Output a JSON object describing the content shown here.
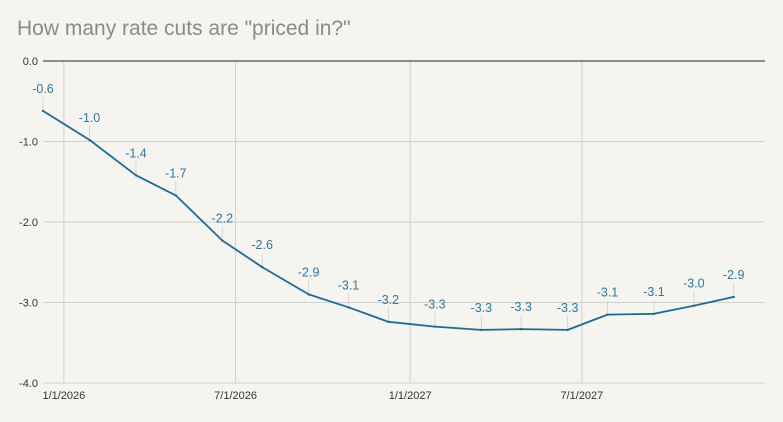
{
  "chart_data": {
    "type": "line",
    "title": "How many rate cuts are \"priced in?\"",
    "xlabel": "",
    "ylabel": "",
    "ylim": [
      -4.0,
      0.0
    ],
    "y_ticks": [
      "0.0",
      "-1.0",
      "-2.0",
      "-3.0",
      "-4.0"
    ],
    "x_ticks": [
      {
        "date": "2026-01-01",
        "label": "1/1/2026"
      },
      {
        "date": "2026-07-01",
        "label": "7/1/2026"
      },
      {
        "date": "2027-01-01",
        "label": "1/1/2027"
      },
      {
        "date": "2027-07-01",
        "label": "7/1/2027"
      }
    ],
    "x_range": [
      "2025-12-10",
      "2028-01-10"
    ],
    "grid": true,
    "line_color": "#1c6c9a",
    "label_color": "#2a79a6",
    "series": [
      {
        "points": [
          {
            "x": "2025-12-10",
            "y": -0.62,
            "label": "-0.6"
          },
          {
            "x": "2026-01-28",
            "y": -0.98,
            "label": "-1.0"
          },
          {
            "x": "2026-03-18",
            "y": -1.42,
            "label": "-1.4"
          },
          {
            "x": "2026-04-29",
            "y": -1.67,
            "label": "-1.7"
          },
          {
            "x": "2026-06-17",
            "y": -2.23,
            "label": "-2.2"
          },
          {
            "x": "2026-07-29",
            "y": -2.56,
            "label": "-2.6"
          },
          {
            "x": "2026-09-16",
            "y": -2.9,
            "label": "-2.9"
          },
          {
            "x": "2026-10-28",
            "y": -3.06,
            "label": "-3.1"
          },
          {
            "x": "2026-12-09",
            "y": -3.24,
            "label": "-3.2"
          },
          {
            "x": "2027-01-27",
            "y": -3.3,
            "label": "-3.3"
          },
          {
            "x": "2027-03-17",
            "y": -3.34,
            "label": "-3.3"
          },
          {
            "x": "2027-04-28",
            "y": -3.33,
            "label": "-3.3"
          },
          {
            "x": "2027-06-16",
            "y": -3.34,
            "label": "-3.3"
          },
          {
            "x": "2027-07-28",
            "y": -3.15,
            "label": "-3.1"
          },
          {
            "x": "2027-09-15",
            "y": -3.14,
            "label": "-3.1"
          },
          {
            "x": "2027-10-27",
            "y": -3.04,
            "label": "-3.0"
          },
          {
            "x": "2027-12-08",
            "y": -2.93,
            "label": "-2.9"
          }
        ]
      }
    ]
  }
}
